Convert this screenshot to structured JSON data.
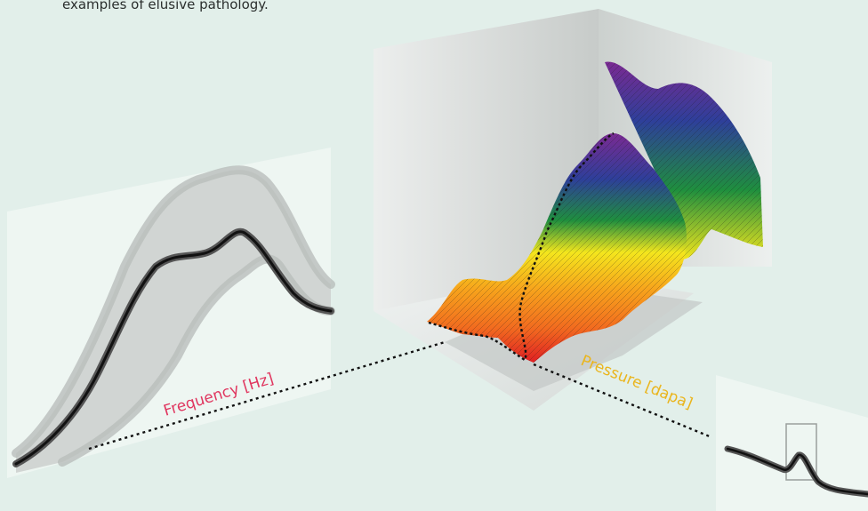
{
  "caption": {
    "text": "examples of elusive pathology."
  },
  "labels": {
    "frequency_axis": "Frequency [Hz]",
    "pressure_axis": "Pressure [dapa]"
  },
  "colors": {
    "background": "#e2efea",
    "frequency_label": "#e0365f",
    "pressure_label": "#eab51d",
    "curve": "#111111",
    "band": "#c9cdcb"
  },
  "surface_color_scale": [
    "#e01f23",
    "#f26b1f",
    "#f7a41c",
    "#f4e61d",
    "#1f8f3e",
    "#2e3f9a",
    "#7a2a92"
  ]
}
